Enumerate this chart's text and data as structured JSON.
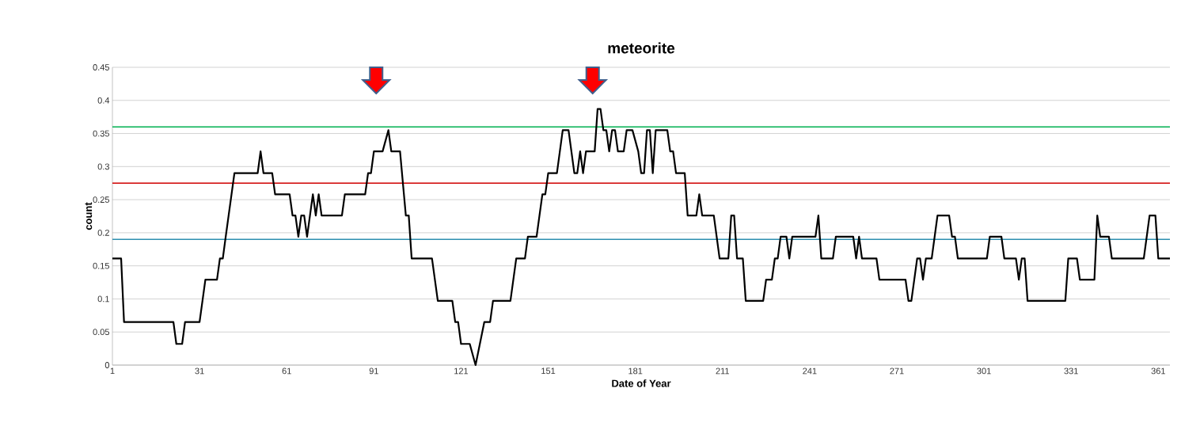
{
  "chart_data": {
    "type": "line",
    "title": "meteorite",
    "xlabel": "Date of Year",
    "ylabel": "count",
    "xlim": [
      1,
      365
    ],
    "xticks": [
      1,
      31,
      61,
      91,
      121,
      151,
      181,
      211,
      241,
      271,
      301,
      331,
      361
    ],
    "ylim": [
      0,
      0.45
    ],
    "yticks": [
      0,
      0.05,
      0.1,
      0.15,
      0.2,
      0.25,
      0.3,
      0.35,
      0.4,
      0.45
    ],
    "grid": "y",
    "marker": "none",
    "line_style": "solid",
    "ref_lines": [
      {
        "axis": "y",
        "value": 0.36,
        "color": "#00b050"
      },
      {
        "axis": "y",
        "value": 0.275,
        "color": "#d00000"
      },
      {
        "axis": "y",
        "value": 0.19,
        "color": "#2e8fb0"
      }
    ],
    "series": [
      {
        "color": "#000000",
        "x": [
          1,
          4,
          5,
          22,
          23,
          25,
          26,
          31,
          32,
          33,
          37,
          38,
          39,
          40,
          41,
          42,
          43,
          51,
          52,
          53,
          56,
          57,
          62,
          63,
          64,
          65,
          66,
          67,
          68,
          70,
          71,
          72,
          73,
          80,
          81,
          88,
          89,
          90,
          91,
          94,
          96,
          97,
          100,
          102,
          103,
          104,
          111,
          112,
          113,
          118,
          119,
          120,
          121,
          124,
          126,
          129,
          131,
          132,
          138,
          139,
          140,
          143,
          144,
          147,
          148,
          149,
          150,
          151,
          154,
          156,
          158,
          160,
          161,
          162,
          163,
          164,
          167,
          168,
          169,
          170,
          171,
          172,
          173,
          174,
          175,
          177,
          178,
          180,
          182,
          183,
          184,
          185,
          186,
          187,
          188,
          192,
          193,
          194,
          195,
          198,
          199,
          202,
          203,
          204,
          208,
          210,
          213,
          214,
          215,
          216,
          218,
          219,
          225,
          226,
          228,
          229,
          230,
          231,
          233,
          234,
          235,
          243,
          244,
          245,
          249,
          250,
          256,
          257,
          258,
          259,
          264,
          265,
          274,
          275,
          276,
          277,
          278,
          279,
          280,
          281,
          283,
          285,
          289,
          290,
          291,
          292,
          302,
          303,
          307,
          308,
          312,
          313,
          314,
          315,
          316,
          329,
          330,
          333,
          334,
          339,
          340,
          341,
          344,
          345,
          356,
          358,
          360,
          361,
          365
        ],
        "values": [
          0.161,
          0.161,
          0.065,
          0.065,
          0.032,
          0.032,
          0.065,
          0.065,
          0.097,
          0.129,
          0.129,
          0.161,
          0.161,
          0.194,
          0.226,
          0.258,
          0.29,
          0.29,
          0.323,
          0.29,
          0.29,
          0.258,
          0.258,
          0.226,
          0.226,
          0.194,
          0.226,
          0.226,
          0.194,
          0.258,
          0.226,
          0.258,
          0.226,
          0.226,
          0.258,
          0.258,
          0.29,
          0.29,
          0.323,
          0.323,
          0.355,
          0.323,
          0.323,
          0.226,
          0.226,
          0.161,
          0.161,
          0.129,
          0.097,
          0.097,
          0.065,
          0.065,
          0.032,
          0.032,
          0,
          0.065,
          0.065,
          0.097,
          0.097,
          0.129,
          0.161,
          0.161,
          0.194,
          0.194,
          0.226,
          0.258,
          0.258,
          0.29,
          0.29,
          0.355,
          0.355,
          0.29,
          0.29,
          0.323,
          0.29,
          0.323,
          0.323,
          0.387,
          0.387,
          0.355,
          0.355,
          0.323,
          0.355,
          0.355,
          0.323,
          0.323,
          0.355,
          0.355,
          0.323,
          0.29,
          0.29,
          0.355,
          0.355,
          0.29,
          0.355,
          0.355,
          0.323,
          0.323,
          0.29,
          0.29,
          0.226,
          0.226,
          0.258,
          0.226,
          0.226,
          0.161,
          0.161,
          0.226,
          0.226,
          0.161,
          0.161,
          0.097,
          0.097,
          0.129,
          0.129,
          0.161,
          0.161,
          0.194,
          0.194,
          0.161,
          0.194,
          0.194,
          0.226,
          0.161,
          0.161,
          0.194,
          0.194,
          0.161,
          0.194,
          0.161,
          0.161,
          0.129,
          0.129,
          0.097,
          0.097,
          0.129,
          0.161,
          0.161,
          0.129,
          0.161,
          0.161,
          0.226,
          0.226,
          0.194,
          0.194,
          0.161,
          0.161,
          0.194,
          0.194,
          0.161,
          0.161,
          0.129,
          0.161,
          0.161,
          0.097,
          0.097,
          0.161,
          0.161,
          0.129,
          0.129,
          0.226,
          0.194,
          0.194,
          0.161,
          0.161,
          0.226,
          0.226,
          0.161,
          0.161
        ]
      }
    ]
  }
}
